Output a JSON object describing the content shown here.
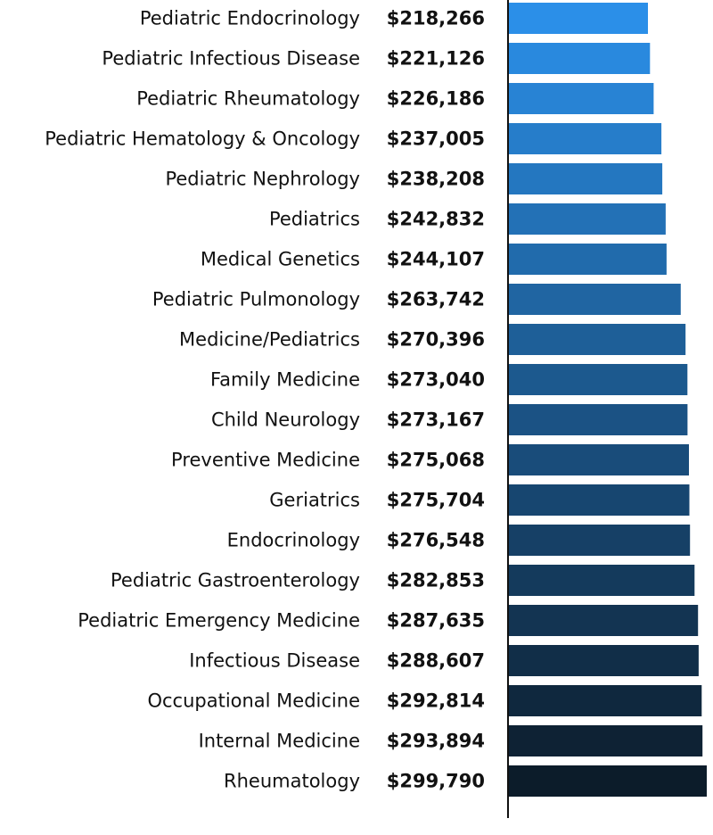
{
  "chart_data": {
    "type": "bar",
    "orientation": "horizontal",
    "title": "",
    "xlabel": "",
    "ylabel": "",
    "grid": false,
    "categories": [
      "Pediatric Endocrinology",
      "Pediatric Infectious Disease",
      "Pediatric Rheumatology",
      "Pediatric Hematology & Oncology",
      "Pediatric Nephrology",
      "Pediatrics",
      "Medical Genetics",
      "Pediatric Pulmonology",
      "Medicine/Pediatrics",
      "Family Medicine",
      "Child Neurology",
      "Preventive Medicine",
      "Geriatrics",
      "Endocrinology",
      "Pediatric Gastroenterology",
      "Pediatric Emergency Medicine",
      "Infectious Disease",
      "Occupational Medicine",
      "Internal Medicine",
      "Rheumatology"
    ],
    "values": [
      218266,
      221126,
      226186,
      237005,
      238208,
      242832,
      244107,
      263742,
      270396,
      273040,
      273167,
      275068,
      275704,
      276548,
      282853,
      287635,
      288607,
      292814,
      293894,
      299790
    ],
    "value_labels": [
      "$218,266",
      "$221,126",
      "$226,186",
      "$237,005",
      "$238,208",
      "$242,832",
      "$244,107",
      "$263,742",
      "$270,396",
      "$273,040",
      "$273,167",
      "$275,068",
      "$275,704",
      "$276,548",
      "$282,853",
      "$287,635",
      "$288,607",
      "$292,814",
      "$293,894",
      "$299,790"
    ],
    "xlim": [
      25700,
      299790
    ],
    "colors": {
      "start": "#2b8fe8",
      "end": "#0c1c2a",
      "axis": "#111111"
    }
  }
}
